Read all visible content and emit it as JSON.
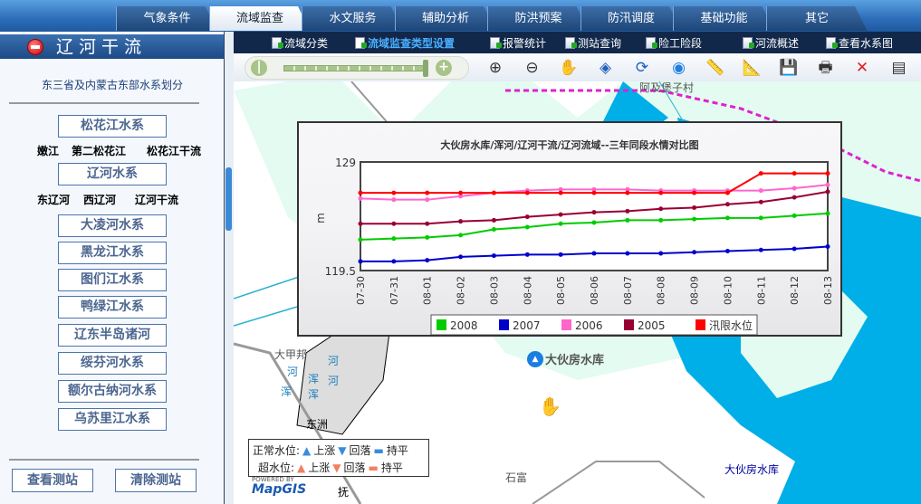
{
  "tabs": [
    {
      "label": "气象条件"
    },
    {
      "label": "流域监查",
      "active": true
    },
    {
      "label": "水文服务"
    },
    {
      "label": "辅助分析"
    },
    {
      "label": "防洪预案"
    },
    {
      "label": "防汛调度"
    },
    {
      "label": "基础功能"
    },
    {
      "label": "其它"
    }
  ],
  "left": {
    "title": "辽河干流",
    "subtitle": "东三省及内蒙古东部水系划分",
    "systems": [
      "松花江水系",
      "辽河水系",
      "大凌河水系",
      "黑龙江水系",
      "图们江水系",
      "鸭绿江水系",
      "辽东半岛诸河",
      "绥芬河水系",
      "额尔古纳河水系",
      "乌苏里江水系"
    ],
    "songhua_sub": [
      "嫩江",
      "第二松花江",
      "松花江干流"
    ],
    "liao_sub": [
      "东辽河",
      "西辽河",
      "辽河干流"
    ],
    "view_stations": "查看测站",
    "clear_stations": "清除测站"
  },
  "subnav": [
    {
      "label": "流域分类"
    },
    {
      "label": "流域监查类型设置",
      "selected": true
    },
    {
      "label": "报警统计"
    },
    {
      "label": "测站查询"
    },
    {
      "label": "险工险段"
    },
    {
      "label": "河流概述"
    },
    {
      "label": "查看水系图"
    }
  ],
  "toolbar": {
    "icons": [
      "zoom-in",
      "zoom-out",
      "pan-hand",
      "full-extent",
      "refresh",
      "eye",
      "ruler",
      "area-measure",
      "save",
      "print",
      "clear",
      "layers"
    ]
  },
  "map": {
    "labels": [
      "阿及堡子村",
      "大甲邦",
      "浑",
      "河",
      "浑",
      "河",
      "浑",
      "河",
      "大伙房水库",
      "石富",
      "东洲",
      "抚",
      "大伙房水库"
    ],
    "station": "大伙房水库",
    "powered": "POWERED BY",
    "brand": "MapGIS",
    "legend": {
      "normal": "正常水位:",
      "over": "超水位:",
      "rise": "上涨",
      "fall": "回落",
      "flat": "持平"
    }
  },
  "colors": {
    "water": "#00aee8",
    "accent": "#1f5aa0"
  },
  "chart_data": {
    "type": "line",
    "title": "大伙房水库/浑河/辽河干流/辽河流域--三年同段水情对比图",
    "ylabel": "m",
    "ylim": [
      119.5,
      129
    ],
    "yticks": [
      "129",
      "119.5"
    ],
    "categories": [
      "07-30",
      "07-31",
      "08-01",
      "08-02",
      "08-03",
      "08-04",
      "08-05",
      "08-06",
      "08-07",
      "08-08",
      "08-09",
      "08-10",
      "08-11",
      "08-12",
      "08-13"
    ],
    "legend_position": "bottom",
    "series": [
      {
        "name": "2008",
        "color": "#00cc00",
        "values": [
          122.2,
          122.3,
          122.4,
          122.6,
          123.1,
          123.3,
          123.6,
          123.7,
          123.9,
          123.9,
          124.0,
          124.1,
          124.1,
          124.3,
          124.5
        ]
      },
      {
        "name": "2007",
        "color": "#0000cc",
        "values": [
          120.3,
          120.3,
          120.4,
          120.7,
          120.8,
          120.9,
          120.9,
          121.0,
          121.0,
          121.0,
          121.1,
          121.2,
          121.3,
          121.4,
          121.6
        ]
      },
      {
        "name": "2006",
        "color": "#ff66cc",
        "values": [
          125.8,
          125.7,
          125.7,
          126.0,
          126.3,
          126.5,
          126.6,
          126.6,
          126.6,
          126.5,
          126.5,
          126.5,
          126.5,
          126.7,
          127.0
        ]
      },
      {
        "name": "2005",
        "color": "#990033",
        "values": [
          123.6,
          123.6,
          123.6,
          123.8,
          123.9,
          124.2,
          124.4,
          124.6,
          124.7,
          124.9,
          125.0,
          125.3,
          125.5,
          125.9,
          126.4
        ]
      },
      {
        "name": "汛限水位",
        "color": "#ff0000",
        "values": [
          126.3,
          126.3,
          126.3,
          126.3,
          126.3,
          126.3,
          126.3,
          126.3,
          126.3,
          126.3,
          126.3,
          126.3,
          128.0,
          128.0,
          128.0
        ]
      }
    ]
  }
}
